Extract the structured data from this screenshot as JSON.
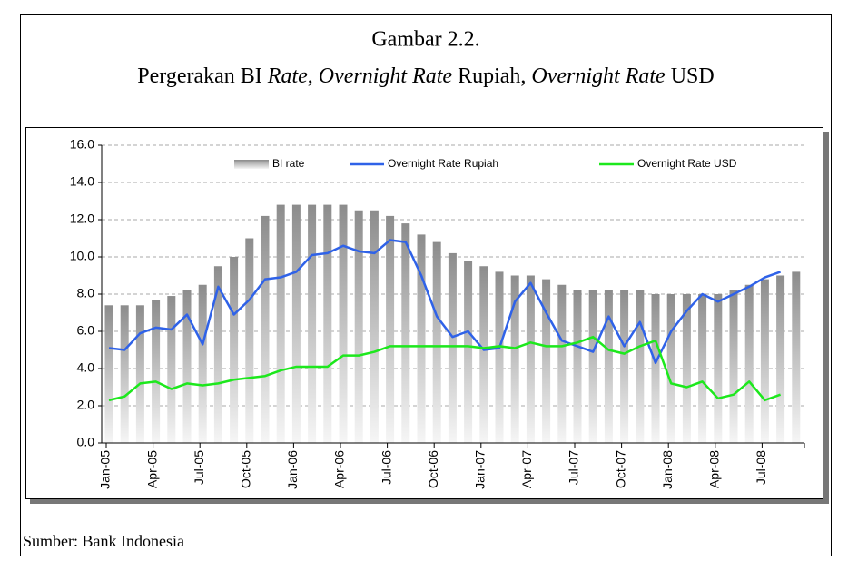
{
  "chart_data": {
    "type": "bar-line",
    "title": "Gambar 2.2.",
    "subtitle_parts": [
      {
        "text": "Pergerakan BI ",
        "italic": false
      },
      {
        "text": "Rate",
        "italic": true
      },
      {
        "text": ", ",
        "italic": false
      },
      {
        "text": "Overnight Rate",
        "italic": true
      },
      {
        "text": " Rupiah, ",
        "italic": false
      },
      {
        "text": "Overnight Rate",
        "italic": true
      },
      {
        "text": " USD",
        "italic": false
      }
    ],
    "source": "Sumber: Bank Indonesia",
    "categories": [
      "Jan-05",
      null,
      null,
      "Apr-05",
      null,
      null,
      "Jul-05",
      null,
      null,
      "Oct-05",
      null,
      null,
      "Jan-06",
      null,
      null,
      "Apr-06",
      null,
      null,
      "Jul-06",
      null,
      null,
      "Oct-06",
      null,
      null,
      "Jan-07",
      null,
      null,
      "Apr-07",
      null,
      null,
      "Jul-07",
      null,
      null,
      "Oct-07",
      null,
      null,
      "Jan-08",
      null,
      null,
      "Apr-08",
      null,
      null,
      "Jul-08",
      null,
      null
    ],
    "series": [
      {
        "name": "BI rate",
        "kind": "bar",
        "color": "#9a9a9a",
        "values": [
          7.4,
          7.4,
          7.4,
          7.7,
          7.9,
          8.2,
          8.5,
          9.5,
          10.0,
          11.0,
          12.2,
          12.8,
          12.8,
          12.8,
          12.8,
          12.8,
          12.5,
          12.5,
          12.2,
          11.8,
          11.2,
          10.8,
          10.2,
          9.8,
          9.5,
          9.2,
          9.0,
          9.0,
          8.8,
          8.5,
          8.2,
          8.2,
          8.2,
          8.2,
          8.2,
          8.0,
          8.0,
          8.0,
          8.0,
          8.0,
          8.2,
          8.5,
          8.8,
          9.0,
          9.2
        ]
      },
      {
        "name": "Overnight Rate Rupiah",
        "kind": "line",
        "color": "#2f62e8",
        "values": [
          5.1,
          5.0,
          5.9,
          6.2,
          6.1,
          6.9,
          5.3,
          8.4,
          6.9,
          7.7,
          8.8,
          8.9,
          9.2,
          10.1,
          10.2,
          10.6,
          10.3,
          10.2,
          10.9,
          10.8,
          9.0,
          6.8,
          5.7,
          6.0,
          5.0,
          5.1,
          7.6,
          8.6,
          7.0,
          5.5,
          5.2,
          4.9,
          6.8,
          5.2,
          6.5,
          4.3,
          6.0,
          7.1,
          8.0,
          7.6,
          8.0,
          8.4,
          8.9,
          9.2,
          null
        ]
      },
      {
        "name": "Overnight Rate USD",
        "kind": "line",
        "color": "#1de81d",
        "values": [
          2.3,
          2.5,
          3.2,
          3.3,
          2.9,
          3.2,
          3.1,
          3.2,
          3.4,
          3.5,
          3.6,
          3.9,
          4.1,
          4.1,
          4.1,
          4.7,
          4.7,
          4.9,
          5.2,
          5.2,
          5.2,
          5.2,
          5.2,
          5.2,
          5.1,
          5.2,
          5.1,
          5.4,
          5.2,
          5.2,
          5.4,
          5.7,
          5.0,
          4.8,
          5.2,
          5.5,
          3.2,
          3.0,
          3.3,
          2.4,
          2.6,
          3.3,
          2.3,
          2.6,
          null
        ]
      }
    ],
    "ylim": [
      0,
      16
    ],
    "yticks": [
      {
        "value": 0,
        "label": "0.0"
      },
      {
        "value": 2,
        "label": "2.0"
      },
      {
        "value": 4,
        "label": "4.0"
      },
      {
        "value": 6,
        "label": "6.0"
      },
      {
        "value": 8,
        "label": "8.0"
      },
      {
        "value": 10,
        "label": "10.0"
      },
      {
        "value": 12,
        "label": "12.0"
      },
      {
        "value": 14,
        "label": "14.0"
      },
      {
        "value": 16,
        "label": "16.0"
      }
    ],
    "grid": true,
    "legend": "top"
  }
}
